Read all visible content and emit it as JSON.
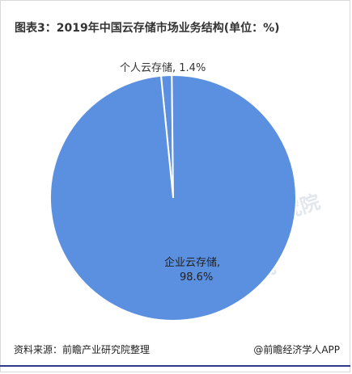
{
  "page": {
    "title": "图表3：2019年中国云存储市场业务结构(单位：%)",
    "source": "资料来源：前瞻产业研究院整理",
    "credit": "@前瞻经济学人APP",
    "watermark": "前瞻产业研究院"
  },
  "colors": {
    "slice_main": "#5b8fdf",
    "slice_small": "#5b8fdf",
    "slice_border": "#ffffff"
  },
  "chart_data": {
    "type": "pie",
    "title": "图表3：2019年中国云存储市场业务结构(单位：%)",
    "slices": [
      {
        "label": "个人云存储",
        "value": 1.4,
        "text_line1": "个人云存储, 1.4%",
        "text_line2": ""
      },
      {
        "label": "企业云存储",
        "value": 98.6,
        "text_line1": "企业云存储,",
        "text_line2": "98.6%"
      }
    ],
    "legend": "none"
  }
}
